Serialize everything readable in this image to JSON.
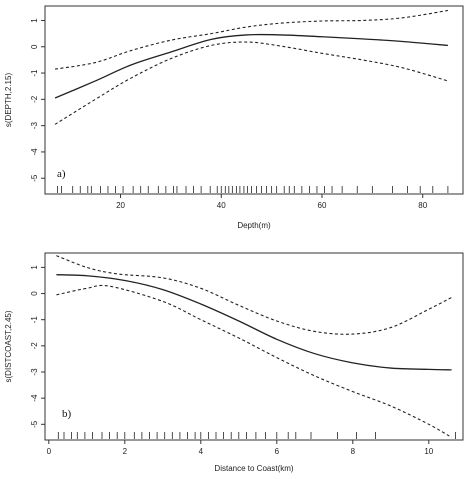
{
  "chart_data": [
    {
      "type": "line",
      "panel_label": "a)",
      "xlabel": "Depth(m)",
      "ylabel": "s(DEPTH,2.15)",
      "xlim": [
        5,
        88
      ],
      "ylim": [
        -5.6,
        1.55
      ],
      "xticks": [
        20,
        40,
        60,
        80
      ],
      "yticks": [
        1,
        0,
        -1,
        -2,
        -3,
        -4,
        -5
      ],
      "grid": false,
      "series": [
        {
          "role": "fit",
          "x": [
            7,
            15,
            22,
            30,
            38,
            45,
            52,
            60,
            68,
            76,
            85
          ],
          "y": [
            -1.95,
            -1.3,
            -0.7,
            -0.2,
            0.28,
            0.45,
            0.45,
            0.38,
            0.3,
            0.2,
            0.05
          ]
        },
        {
          "role": "upper",
          "x": [
            7,
            15,
            22,
            30,
            38,
            45,
            52,
            60,
            68,
            76,
            85
          ],
          "y": [
            -0.85,
            -0.6,
            -0.15,
            0.25,
            0.5,
            0.75,
            0.9,
            0.98,
            1.0,
            1.1,
            1.38
          ]
        },
        {
          "role": "lower",
          "x": [
            7,
            15,
            22,
            30,
            38,
            45,
            52,
            60,
            68,
            76,
            85
          ],
          "y": [
            -2.95,
            -2.0,
            -1.2,
            -0.45,
            0.05,
            0.18,
            0.02,
            -0.25,
            -0.5,
            -0.8,
            -1.3
          ]
        }
      ],
      "rug": [
        7.5,
        8.3,
        10.5,
        12,
        13.5,
        14.2,
        16,
        17.5,
        19,
        20.5,
        22.5,
        24,
        25.5,
        27.5,
        29,
        30.5,
        31.2,
        33,
        34.5,
        36,
        37.8,
        39.2,
        40,
        40.8,
        41.5,
        42.2,
        43,
        43.7,
        44.5,
        45.2,
        46,
        47,
        48,
        49,
        50,
        51,
        52.5,
        53.5,
        54.5,
        56,
        57.5,
        59,
        60.5,
        62,
        64,
        67,
        70,
        74,
        77,
        79.5,
        82,
        85
      ]
    },
    {
      "type": "line",
      "panel_label": "b)",
      "xlabel": "Distance to Coast(km)",
      "ylabel": "s(DISTCOAST,2.45)",
      "xlim": [
        -0.1,
        10.9
      ],
      "ylim": [
        -5.6,
        1.55
      ],
      "xticks": [
        0,
        2,
        4,
        6,
        8,
        10
      ],
      "yticks": [
        1,
        0,
        -1,
        -2,
        -3,
        -4,
        -5
      ],
      "grid": false,
      "series": [
        {
          "role": "fit",
          "x": [
            0.2,
            1,
            2,
            3,
            4,
            5,
            6,
            7,
            8,
            9,
            10,
            10.6
          ],
          "y": [
            0.72,
            0.68,
            0.5,
            0.15,
            -0.4,
            -1.05,
            -1.75,
            -2.3,
            -2.65,
            -2.85,
            -2.9,
            -2.92
          ]
        },
        {
          "role": "upper",
          "x": [
            0.2,
            1,
            1.8,
            3,
            4,
            5,
            6,
            7,
            8,
            9,
            10,
            10.6
          ],
          "y": [
            1.45,
            1.0,
            0.75,
            0.6,
            0.2,
            -0.45,
            -1.05,
            -1.45,
            -1.55,
            -1.3,
            -0.6,
            -0.15
          ]
        },
        {
          "role": "lower",
          "x": [
            0.2,
            1,
            1.6,
            3,
            4,
            5,
            6,
            7,
            8,
            9,
            10,
            10.6
          ],
          "y": [
            -0.05,
            0.2,
            0.28,
            -0.3,
            -1.0,
            -1.7,
            -2.45,
            -3.15,
            -3.75,
            -4.3,
            -5.0,
            -5.5
          ]
        }
      ],
      "rug": [
        0.25,
        0.4,
        0.6,
        0.75,
        0.95,
        1.15,
        1.4,
        1.6,
        1.8,
        2.0,
        2.25,
        2.45,
        2.65,
        2.85,
        3.05,
        3.25,
        3.45,
        3.65,
        3.85,
        4.0,
        4.2,
        4.4,
        4.6,
        4.8,
        5.0,
        5.2,
        5.45,
        5.7,
        6.0,
        6.3,
        6.5,
        6.9,
        7.6,
        8.1,
        8.6,
        10.7
      ]
    }
  ]
}
